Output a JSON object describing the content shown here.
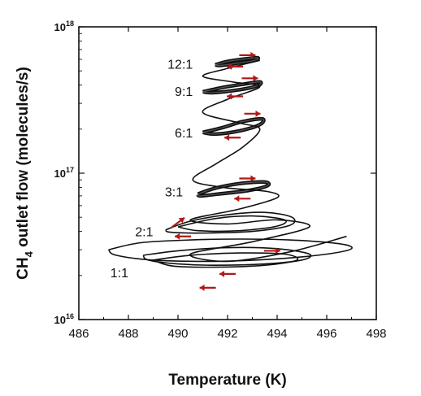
{
  "chart_data": {
    "type": "line",
    "title": "",
    "xlabel": "Temperature (K)",
    "ylabel": "CH4 outlet flow (molecules/s)",
    "ylabel_parts": {
      "prefix": "CH",
      "subscript": "4",
      "suffix": " outlet flow (molecules/s)"
    },
    "xlim": [
      486,
      498
    ],
    "ylim": [
      1e+16,
      1e+18
    ],
    "yscale": "log",
    "grid": false,
    "legend": "none",
    "x_ticks": [
      "486",
      "488",
      "490",
      "492",
      "494",
      "496",
      "498"
    ],
    "y_ticks": [
      {
        "value": 1e+16,
        "base": "10",
        "exp": "16"
      },
      {
        "value": 1e+17,
        "base": "10",
        "exp": "17"
      },
      {
        "value": 1e+18,
        "base": "10",
        "exp": "18"
      }
    ],
    "line_color": "#111111",
    "arrow_color": "#b01818",
    "series": [
      {
        "label": "1:1",
        "label_at": [
          488.0,
          2.1e+16
        ],
        "x": [
          487.2,
          488.5,
          490.5,
          492.5,
          494.5,
          496.5,
          497.0,
          496.0,
          494.0,
          491.5,
          489.0,
          487.5,
          487.2
        ],
        "y": [
          3e+16,
          3.35e+16,
          3.5e+16,
          3.55e+16,
          3.5e+16,
          3.3e+16,
          3.05e+16,
          2.8e+16,
          2.6e+16,
          2.5e+16,
          2.55e+16,
          2.75e+16,
          3e+16
        ]
      },
      {
        "label": "1:1",
        "label_at": [
          488.0,
          2.1e+16
        ],
        "x": [
          488.6,
          490.0,
          492.0,
          494.0,
          495.3,
          495.0,
          493.5,
          491.5,
          490.0,
          488.8,
          488.6
        ],
        "y": [
          2.75e+16,
          2.95e+16,
          3.1e+16,
          3.05e+16,
          2.8e+16,
          2.55e+16,
          2.4e+16,
          2.35e+16,
          2.4e+16,
          2.55e+16,
          2.75e+16
        ]
      },
      {
        "label": "1:1",
        "label_at": [
          488.0,
          2.1e+16
        ],
        "x": [
          489.0,
          490.5,
          492.5,
          494.3,
          494.8,
          493.5,
          491.5,
          489.8,
          489.0
        ],
        "y": [
          2.55e+16,
          2.75e+16,
          2.85e+16,
          2.8e+16,
          2.55e+16,
          2.35e+16,
          2.28e+16,
          2.32e+16,
          2.55e+16
        ]
      },
      {
        "label": "2:1",
        "label_at": [
          489.0,
          4e+16
        ],
        "x": [
          489.5,
          490.5,
          492.0,
          493.5,
          494.6,
          494.5,
          493.0,
          491.0,
          489.7,
          489.5
        ],
        "y": [
          4.1e+16,
          4.7e+16,
          5.2e+16,
          5.4e+16,
          5e+16,
          4.4e+16,
          4e+16,
          3.9e+16,
          3.95e+16,
          4.1e+16
        ]
      },
      {
        "label": "2:1",
        "label_at": [
          489.0,
          4e+16
        ],
        "x": [
          490.0,
          491.5,
          493.0,
          494.3,
          494.0,
          492.5,
          490.8,
          490.0
        ],
        "y": [
          4.3e+16,
          4.9e+16,
          5.1e+16,
          4.8e+16,
          4.35e+16,
          4.05e+16,
          4.05e+16,
          4.3e+16
        ]
      },
      {
        "label": "3:1",
        "label_at": [
          490.2,
          7.5e+16
        ],
        "x": [
          490.8,
          491.5,
          492.5,
          493.5,
          493.6,
          492.8,
          491.6,
          490.9,
          490.8
        ],
        "y": [
          7.2e+16,
          7.9e+16,
          8.5e+16,
          8.7e+16,
          8.2e+16,
          7.6e+16,
          7.2e+16,
          7e+16,
          7.2e+16
        ]
      },
      {
        "label": "6:1",
        "label_at": [
          490.6,
          1.9e+17
        ],
        "x": [
          491.0,
          491.8,
          492.6,
          493.4,
          493.3,
          492.5,
          491.5,
          491.0
        ],
        "y": [
          1.9e+17,
          2.05e+17,
          2.25e+17,
          2.35e+17,
          2.15e+17,
          1.95e+17,
          1.85e+17,
          1.9e+17
        ]
      },
      {
        "label": "9:1",
        "label_at": [
          490.6,
          3.65e+17
        ],
        "x": [
          491.0,
          491.8,
          492.6,
          493.3,
          493.2,
          492.4,
          491.4,
          491.0
        ],
        "y": [
          3.6e+17,
          3.85e+17,
          4.05e+17,
          4.2e+17,
          3.95e+17,
          3.7e+17,
          3.55e+17,
          3.6e+17
        ]
      },
      {
        "label": "12:1",
        "label_at": [
          490.6,
          5.6e+17
        ],
        "x": [
          491.5,
          492.0,
          492.6,
          493.2,
          493.1,
          492.4,
          491.7,
          491.5
        ],
        "y": [
          5.5e+17,
          5.8e+17,
          6e+17,
          6.15e+17,
          5.9e+17,
          5.65e+17,
          5.45e+17,
          5.5e+17
        ]
      },
      {
        "label": "",
        "label_at": null,
        "x": [
          493.3,
          492.0,
          491.0,
          492.2,
          493.3,
          492.0,
          491.0,
          492.5,
          493.3,
          492.6,
          491.5,
          490.6,
          491.8,
          493.6,
          494.0,
          492.5,
          490.5,
          492.0,
          494.0,
          495.3,
          493.0,
          490.5,
          492.0,
          494.5,
          496.8
        ],
        "y": [
          5.9e+17,
          5.2e+17,
          4.6e+17,
          4.2e+17,
          3.9e+17,
          3.2e+17,
          2.6e+17,
          2.2e+17,
          2e+17,
          1.5e+17,
          1.15e+17,
          9e+16,
          8e+16,
          7.5e+16,
          6.8e+16,
          5.7e+16,
          4.8e+16,
          4.5e+16,
          4.8e+16,
          4.3e+16,
          3.4e+16,
          2.8e+16,
          2.5e+16,
          2.9e+16,
          3.7e+16
        ]
      }
    ],
    "arrows": [
      {
        "x": 492.8,
        "y": 6.4e+17,
        "dir": "right"
      },
      {
        "x": 492.3,
        "y": 5.35e+17,
        "dir": "left"
      },
      {
        "x": 492.9,
        "y": 4.45e+17,
        "dir": "right"
      },
      {
        "x": 492.3,
        "y": 3.35e+17,
        "dir": "left"
      },
      {
        "x": 493.0,
        "y": 2.55e+17,
        "dir": "right"
      },
      {
        "x": 492.2,
        "y": 1.75e+17,
        "dir": "left"
      },
      {
        "x": 492.8,
        "y": 9.2e+16,
        "dir": "right"
      },
      {
        "x": 492.6,
        "y": 6.7e+16,
        "dir": "left"
      },
      {
        "x": 490.0,
        "y": 4.6e+16,
        "dir": "up-right"
      },
      {
        "x": 490.2,
        "y": 3.7e+16,
        "dir": "left"
      },
      {
        "x": 493.8,
        "y": 2.95e+16,
        "dir": "right"
      },
      {
        "x": 492.0,
        "y": 2.05e+16,
        "dir": "left"
      },
      {
        "x": 491.2,
        "y": 1.65e+16,
        "dir": "left"
      }
    ]
  }
}
